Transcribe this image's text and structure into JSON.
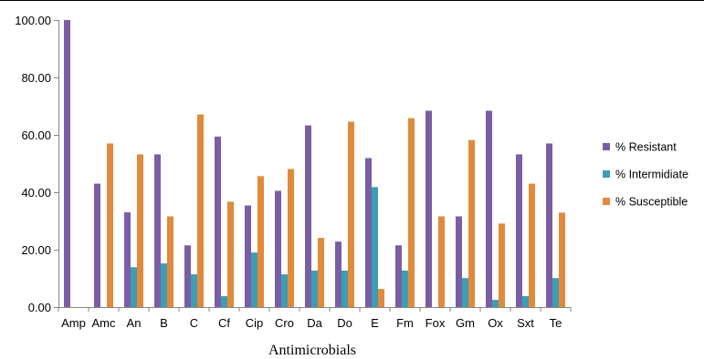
{
  "chart_data": {
    "type": "bar",
    "title": "",
    "xlabel": "Antimicrobials",
    "ylabel": "",
    "ylim": [
      0,
      100
    ],
    "yticks": [
      "0.00",
      "20.00",
      "40.00",
      "60.00",
      "80.00",
      "100.00"
    ],
    "grid": false,
    "legend_position": "right",
    "categories": [
      "Amp",
      "Amc",
      "An",
      "B",
      "C",
      "Cf",
      "Cip",
      "Cro",
      "Da",
      "Do",
      "E",
      "Fm",
      "Fox",
      "Gm",
      "Ox",
      "Sxt",
      "Te"
    ],
    "series": [
      {
        "name": "% Resistant",
        "color": "#7a5ea3",
        "values": [
          100,
          43,
          33,
          53.2,
          21.5,
          59.4,
          35.4,
          40.5,
          63.3,
          22.8,
          51.9,
          21.5,
          68.4,
          31.6,
          68.4,
          53.2,
          57
        ]
      },
      {
        "name": "% Intermidiate",
        "color": "#3d9db5",
        "values": [
          0,
          0,
          13.9,
          15.2,
          11.4,
          3.8,
          19,
          11.4,
          12.7,
          12.7,
          41.8,
          12.7,
          0,
          10.1,
          2.5,
          3.8,
          10.1
        ]
      },
      {
        "name": "% Susceptible",
        "color": "#e08a3c",
        "values": [
          0,
          57,
          53.2,
          31.6,
          67.1,
          36.7,
          45.6,
          48.1,
          24.1,
          64.6,
          6.3,
          65.8,
          31.6,
          58.2,
          29.1,
          43,
          32.9
        ]
      }
    ]
  }
}
